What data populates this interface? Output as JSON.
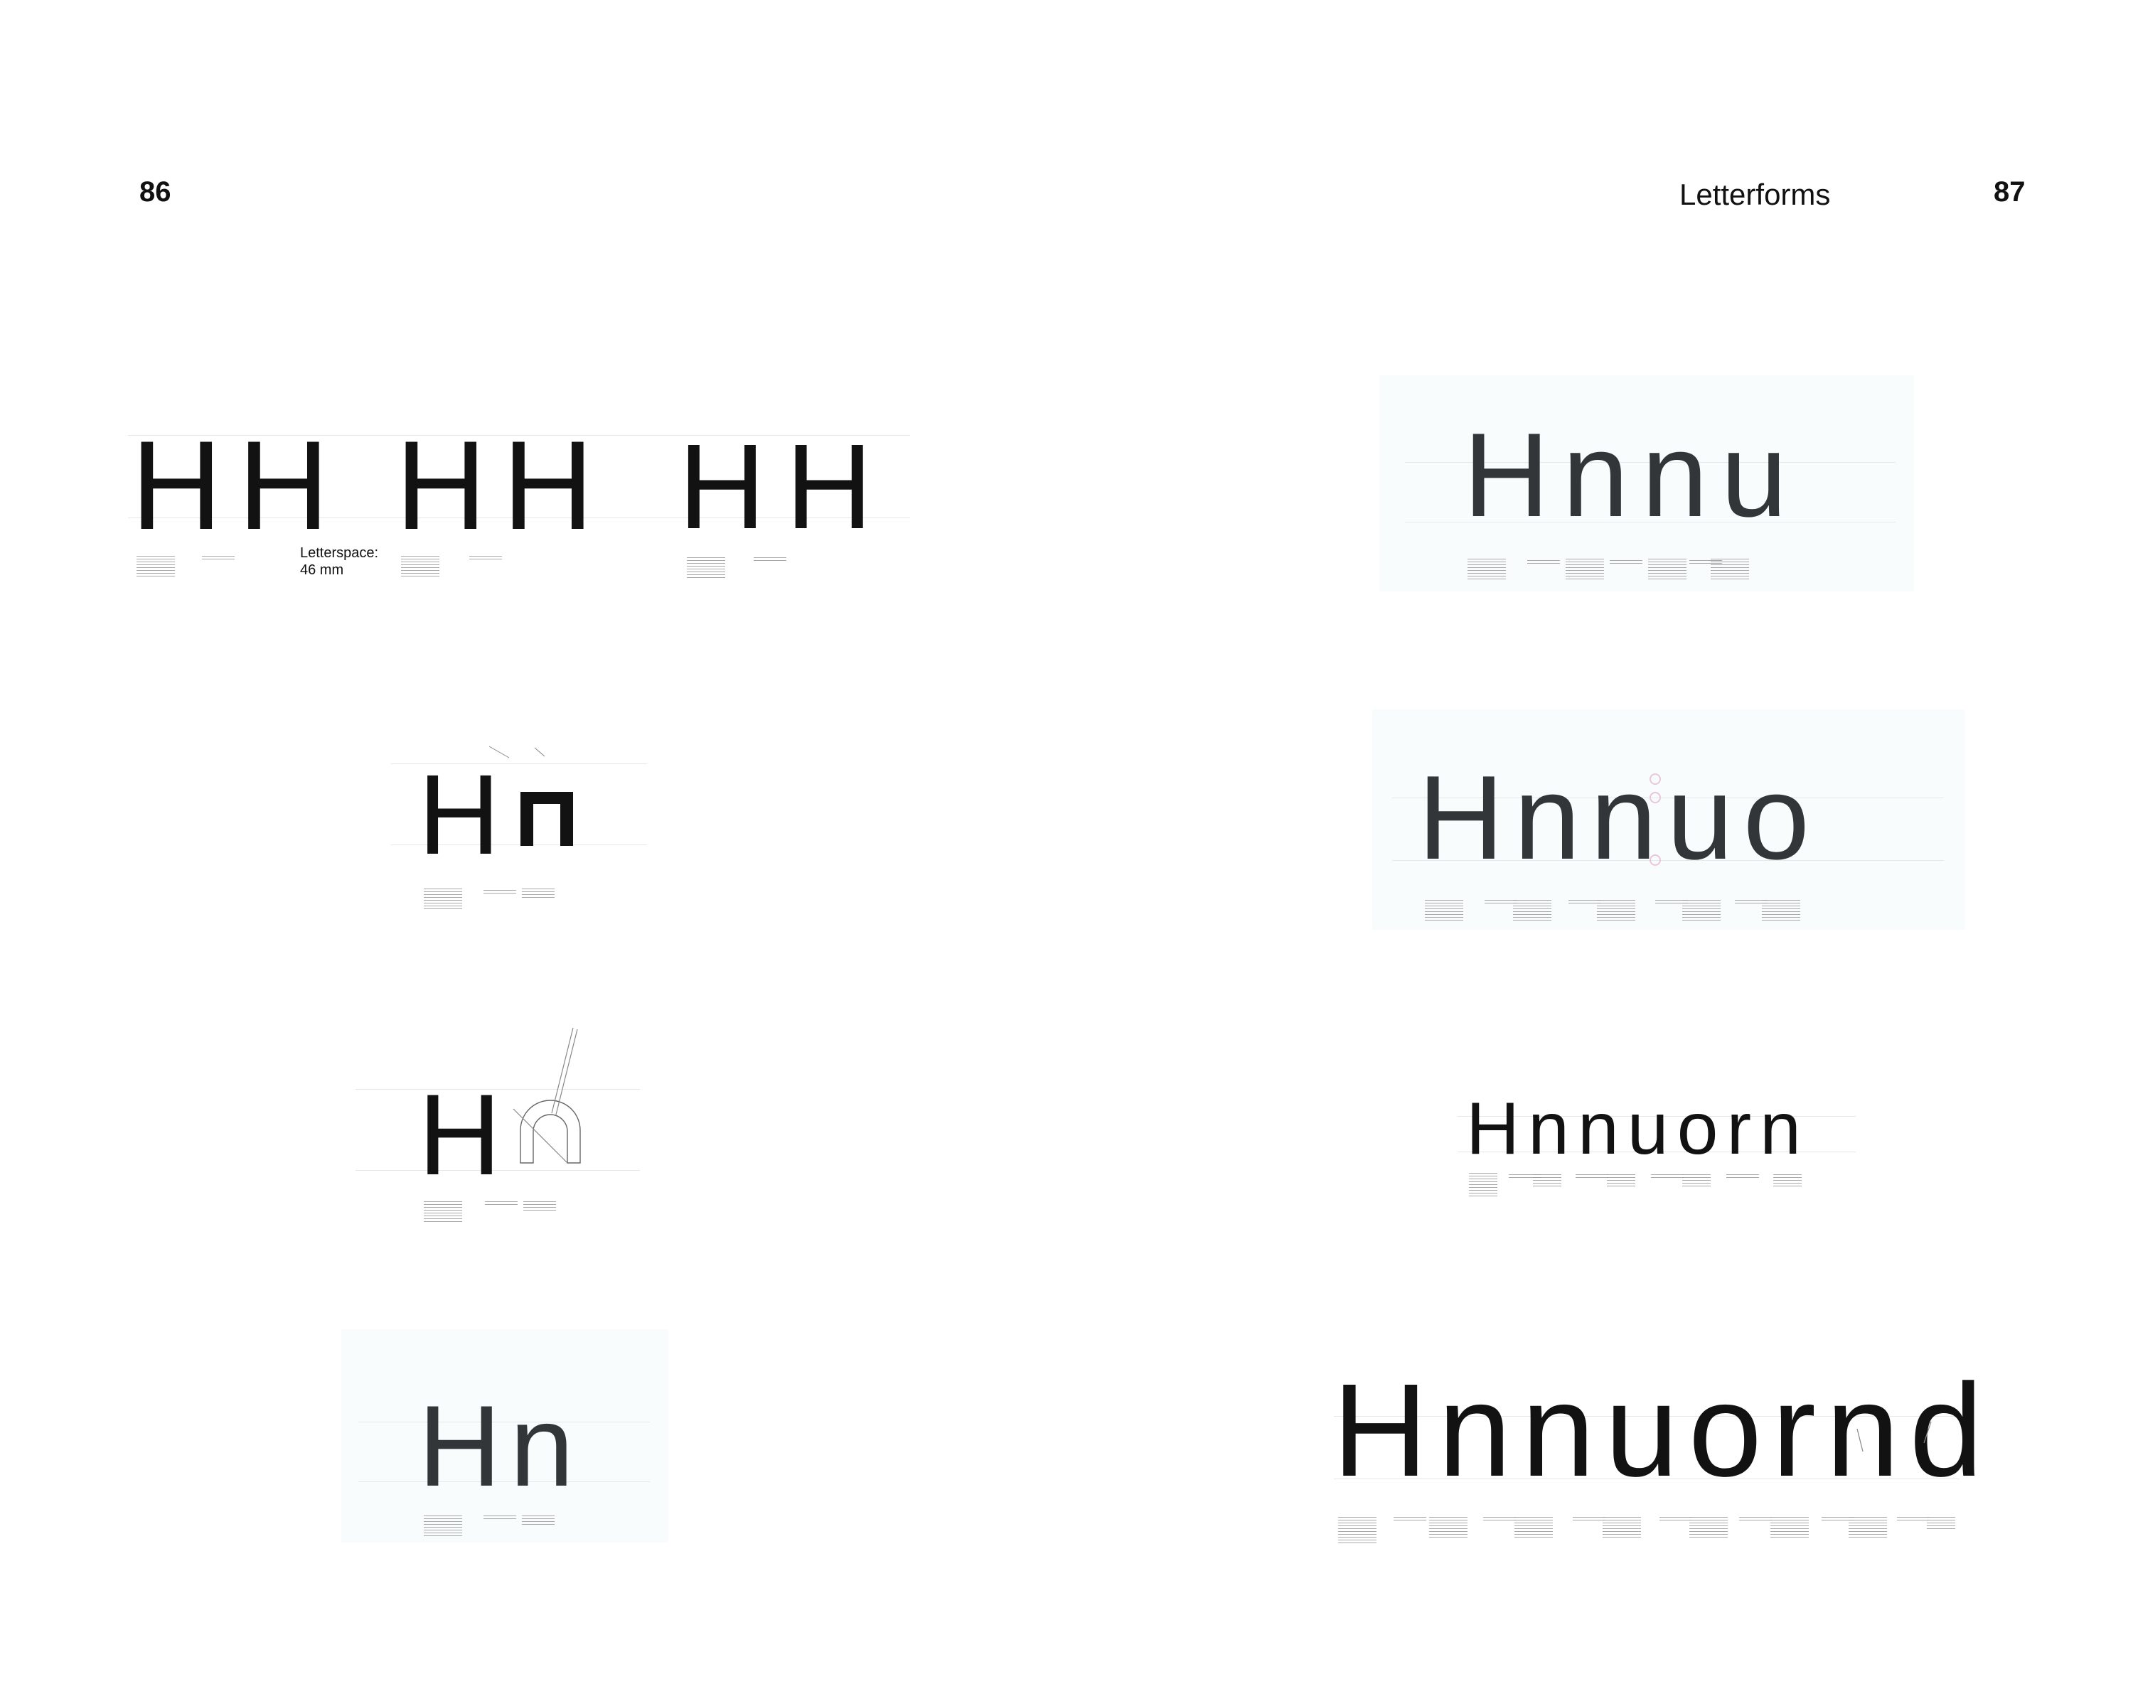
{
  "spread": {
    "left_page_number": "86",
    "right_page_number": "87",
    "section_title": "Letterforms"
  },
  "left_page": {
    "row1": {
      "specimens": [
        {
          "text": "HH"
        },
        {
          "text": "HH"
        },
        {
          "text": "HH"
        }
      ],
      "note_line1": "Letterspace:",
      "note_line2": "46 mm"
    },
    "row2": {
      "text": "H"
    },
    "row3": {
      "text": "H"
    },
    "row4": {
      "text": "Hn"
    }
  },
  "right_page": {
    "specimens": [
      {
        "text": "Hnnu"
      },
      {
        "text": "Hnnuo"
      },
      {
        "text": "Hnnuorn"
      },
      {
        "text": "Hnnuornd"
      }
    ]
  },
  "colors": {
    "background": "#ffffff",
    "ink": "#121212",
    "ink_gray": "#333638",
    "panel_tint": "#f8fcfc",
    "guide": "#e4e8e8",
    "overshoot_circles": "#e8c6d8"
  }
}
